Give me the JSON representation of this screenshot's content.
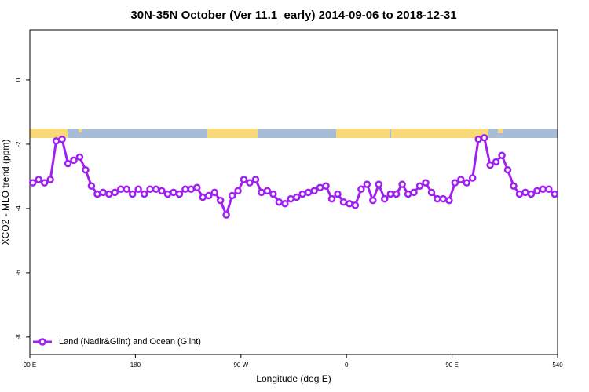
{
  "chart_data": {
    "type": "line",
    "title": "30N-35N October (Ver 11.1_early)   2014-09-06 to 2018-12-31",
    "x_label": "Longitude (deg E)",
    "y_label": "XCO2 - MLO trend (ppm)",
    "xlim": [
      90,
      540
    ],
    "ylim": [
      -8.54,
      1.56
    ],
    "xticks": [
      {
        "value": 90,
        "label": "90 E"
      },
      180,
      {
        "value": 270,
        "label": "90 W"
      },
      {
        "value": 360,
        "label": "0"
      },
      {
        "value": 450,
        "label": "90 E"
      },
      540
    ],
    "yticks": [
      0,
      -2,
      -4,
      -6,
      -8
    ],
    "legend": "bottom-left",
    "x": [
      92.5,
      97.5,
      102.5,
      107.5,
      112.5,
      117.5,
      122.5,
      127.5,
      132.5,
      137.5,
      142.5,
      147.5,
      152.5,
      157.5,
      162.5,
      167.5,
      172.5,
      177.5,
      182.5,
      187.5,
      192.5,
      197.5,
      202.5,
      207.5,
      212.5,
      217.5,
      222.5,
      227.5,
      232.5,
      237.5,
      242.5,
      247.5,
      252.5,
      257.5,
      262.5,
      267.5,
      272.5,
      277.5,
      282.5,
      287.5,
      292.5,
      297.5,
      302.5,
      307.5,
      312.5,
      317.5,
      322.5,
      327.5,
      332.5,
      337.5,
      342.5,
      347.5,
      352.5,
      357.5,
      362.5,
      367.5,
      372.5,
      377.5,
      382.5,
      387.5,
      392.5,
      397.5,
      402.5,
      407.5,
      412.5,
      417.5,
      422.5,
      427.5,
      432.5,
      437.5,
      442.5,
      447.5,
      452.5,
      457.5,
      462.5,
      467.5,
      472.5,
      477.5,
      482.5,
      487.5,
      492.5,
      497.5,
      502.5,
      507.5,
      512.5,
      517.5,
      522.5,
      527.5,
      532.5,
      537.5
    ],
    "series": [
      {
        "name": "Land (Nadir&Glint) and Ocean (Glint)",
        "color": "#a020f0",
        "values": [
          -3.2,
          -3.1,
          -3.2,
          -3.1,
          -1.9,
          -1.85,
          -2.6,
          -2.5,
          -2.4,
          -2.8,
          -3.3,
          -3.55,
          -3.5,
          -3.55,
          -3.5,
          -3.4,
          -3.4,
          -3.55,
          -3.4,
          -3.55,
          -3.4,
          -3.4,
          -3.45,
          -3.55,
          -3.5,
          -3.55,
          -3.4,
          -3.4,
          -3.35,
          -3.65,
          -3.6,
          -3.5,
          -3.75,
          -4.2,
          -3.6,
          -3.45,
          -3.1,
          -3.2,
          -3.1,
          -3.5,
          -3.45,
          -3.55,
          -3.8,
          -3.85,
          -3.7,
          -3.65,
          -3.55,
          -3.5,
          -3.45,
          -3.35,
          -3.3,
          -3.7,
          -3.55,
          -3.8,
          -3.85,
          -3.9,
          -3.4,
          -3.25,
          -3.75,
          -3.25,
          -3.7,
          -3.55,
          -3.55,
          -3.25,
          -3.55,
          -3.5,
          -3.3,
          -3.2,
          -3.5,
          -3.7,
          -3.7,
          -3.75,
          -3.2,
          -3.1,
          -3.2,
          -3.05,
          -1.85,
          -1.8,
          -2.65,
          -2.55,
          -2.35,
          -2.8,
          -3.3,
          -3.55,
          -3.5,
          -3.55,
          -3.45,
          -3.4,
          -3.4,
          -3.55
        ]
      }
    ]
  }
}
